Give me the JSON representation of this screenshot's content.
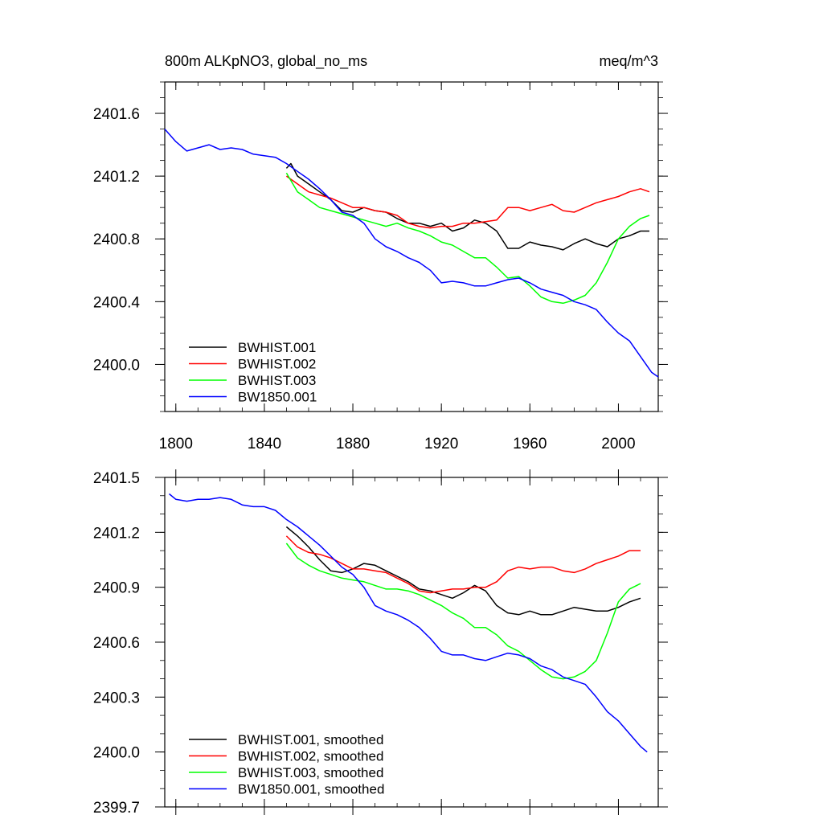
{
  "chart_data": [
    {
      "type": "line",
      "title_left": "800m ALKpNO3, global_no_ms",
      "title_right": "meq/m^3",
      "xlabel": "",
      "ylabel": "",
      "xlim": [
        1795,
        2018
      ],
      "ylim": [
        2399.7,
        2401.8
      ],
      "xticks": [
        1800,
        1840,
        1880,
        1920,
        1960,
        2000
      ],
      "yticks": [
        2400.0,
        2400.4,
        2400.8,
        2401.2,
        2401.6
      ],
      "ytick_labels": [
        "2400.0",
        "2400.4",
        "2400.8",
        "2401.2",
        "2401.6"
      ],
      "xtick_labels": [
        "1800",
        "1840",
        "1880",
        "1920",
        "1960",
        "2000"
      ],
      "legend_position": "bottom-left",
      "series": [
        {
          "name": "BWHIST.001",
          "color": "#000000",
          "x": [
            1850,
            1852,
            1855,
            1860,
            1865,
            1870,
            1875,
            1880,
            1885,
            1890,
            1895,
            1900,
            1905,
            1910,
            1915,
            1920,
            1925,
            1930,
            1935,
            1940,
            1945,
            1950,
            1955,
            1960,
            1965,
            1970,
            1975,
            1980,
            1985,
            1990,
            1995,
            2000,
            2005,
            2010,
            2014
          ],
          "y": [
            2401.25,
            2401.28,
            2401.2,
            2401.15,
            2401.1,
            2401.05,
            2400.98,
            2400.97,
            2401.0,
            2400.98,
            2400.97,
            2400.93,
            2400.9,
            2400.9,
            2400.88,
            2400.9,
            2400.85,
            2400.87,
            2400.92,
            2400.9,
            2400.85,
            2400.74,
            2400.74,
            2400.78,
            2400.76,
            2400.75,
            2400.73,
            2400.77,
            2400.8,
            2400.77,
            2400.75,
            2400.8,
            2400.82,
            2400.85,
            2400.85
          ]
        },
        {
          "name": "BWHIST.002",
          "color": "#ff0000",
          "x": [
            1850,
            1855,
            1860,
            1865,
            1870,
            1875,
            1880,
            1885,
            1890,
            1895,
            1900,
            1905,
            1910,
            1915,
            1920,
            1925,
            1930,
            1935,
            1940,
            1945,
            1950,
            1955,
            1960,
            1965,
            1970,
            1975,
            1980,
            1985,
            1990,
            1995,
            2000,
            2005,
            2010,
            2014
          ],
          "y": [
            2401.2,
            2401.15,
            2401.1,
            2401.08,
            2401.06,
            2401.03,
            2401.0,
            2401.0,
            2400.98,
            2400.97,
            2400.95,
            2400.9,
            2400.88,
            2400.87,
            2400.88,
            2400.88,
            2400.9,
            2400.9,
            2400.91,
            2400.92,
            2401.0,
            2401.0,
            2400.98,
            2401.0,
            2401.02,
            2400.98,
            2400.97,
            2401.0,
            2401.03,
            2401.05,
            2401.07,
            2401.1,
            2401.12,
            2401.1
          ]
        },
        {
          "name": "BWHIST.003",
          "color": "#00ff00",
          "x": [
            1850,
            1855,
            1860,
            1865,
            1870,
            1875,
            1880,
            1885,
            1890,
            1895,
            1900,
            1905,
            1910,
            1915,
            1920,
            1925,
            1930,
            1935,
            1940,
            1945,
            1950,
            1955,
            1960,
            1965,
            1970,
            1975,
            1980,
            1985,
            1990,
            1995,
            2000,
            2005,
            2010,
            2014
          ],
          "y": [
            2401.22,
            2401.1,
            2401.05,
            2401.0,
            2400.98,
            2400.96,
            2400.94,
            2400.92,
            2400.9,
            2400.88,
            2400.9,
            2400.87,
            2400.85,
            2400.82,
            2400.78,
            2400.76,
            2400.72,
            2400.68,
            2400.68,
            2400.62,
            2400.55,
            2400.56,
            2400.5,
            2400.43,
            2400.4,
            2400.39,
            2400.41,
            2400.44,
            2400.52,
            2400.65,
            2400.8,
            2400.88,
            2400.93,
            2400.95
          ]
        },
        {
          "name": "BW1850.001",
          "color": "#0000ff",
          "x": [
            1795,
            1800,
            1805,
            1810,
            1815,
            1820,
            1825,
            1830,
            1835,
            1840,
            1845,
            1850,
            1855,
            1860,
            1865,
            1870,
            1875,
            1880,
            1885,
            1890,
            1895,
            1900,
            1905,
            1910,
            1915,
            1920,
            1925,
            1930,
            1935,
            1940,
            1945,
            1950,
            1955,
            1960,
            1965,
            1970,
            1975,
            1980,
            1985,
            1990,
            1995,
            2000,
            2005,
            2010,
            2015,
            2018
          ],
          "y": [
            2401.5,
            2401.42,
            2401.36,
            2401.38,
            2401.4,
            2401.37,
            2401.38,
            2401.37,
            2401.34,
            2401.33,
            2401.32,
            2401.28,
            2401.23,
            2401.18,
            2401.12,
            2401.05,
            2400.97,
            2400.95,
            2400.9,
            2400.8,
            2400.75,
            2400.72,
            2400.68,
            2400.65,
            2400.6,
            2400.52,
            2400.53,
            2400.52,
            2400.5,
            2400.5,
            2400.52,
            2400.54,
            2400.55,
            2400.52,
            2400.48,
            2400.46,
            2400.44,
            2400.4,
            2400.38,
            2400.35,
            2400.27,
            2400.2,
            2400.15,
            2400.05,
            2399.95,
            2399.92
          ]
        }
      ]
    },
    {
      "type": "line",
      "xlabel": "",
      "ylabel": "",
      "xlim": [
        1795,
        2018
      ],
      "ylim": [
        2399.7,
        2401.5
      ],
      "xticks": [
        1800,
        1840,
        1880,
        1920,
        1960,
        2000
      ],
      "yticks": [
        2399.7,
        2400.0,
        2400.3,
        2400.6,
        2400.9,
        2401.2,
        2401.5
      ],
      "ytick_labels": [
        "2399.7",
        "2400.0",
        "2400.3",
        "2400.6",
        "2400.9",
        "2401.2",
        "2401.5"
      ],
      "legend_position": "bottom-left",
      "series": [
        {
          "name": "BWHIST.001, smoothed",
          "color": "#000000",
          "x": [
            1850,
            1855,
            1860,
            1865,
            1870,
            1875,
            1880,
            1885,
            1890,
            1895,
            1900,
            1905,
            1910,
            1915,
            1920,
            1925,
            1930,
            1935,
            1940,
            1945,
            1950,
            1955,
            1960,
            1965,
            1970,
            1975,
            1980,
            1985,
            1990,
            1995,
            2000,
            2005,
            2010
          ],
          "y": [
            2401.23,
            2401.18,
            2401.12,
            2401.05,
            2400.99,
            2400.98,
            2401.0,
            2401.03,
            2401.02,
            2400.99,
            2400.96,
            2400.93,
            2400.89,
            2400.88,
            2400.86,
            2400.84,
            2400.87,
            2400.91,
            2400.88,
            2400.8,
            2400.76,
            2400.75,
            2400.77,
            2400.75,
            2400.75,
            2400.77,
            2400.79,
            2400.78,
            2400.77,
            2400.77,
            2400.79,
            2400.82,
            2400.84
          ]
        },
        {
          "name": "BWHIST.002, smoothed",
          "color": "#ff0000",
          "x": [
            1850,
            1855,
            1860,
            1865,
            1870,
            1875,
            1880,
            1885,
            1890,
            1895,
            1900,
            1905,
            1910,
            1915,
            1920,
            1925,
            1930,
            1935,
            1940,
            1945,
            1950,
            1955,
            1960,
            1965,
            1970,
            1975,
            1980,
            1985,
            1990,
            1995,
            2000,
            2005,
            2010
          ],
          "y": [
            2401.18,
            2401.12,
            2401.09,
            2401.08,
            2401.06,
            2401.03,
            2401.0,
            2401.0,
            2400.99,
            2400.98,
            2400.95,
            2400.92,
            2400.88,
            2400.87,
            2400.88,
            2400.89,
            2400.89,
            2400.9,
            2400.9,
            2400.93,
            2400.99,
            2401.01,
            2401.0,
            2401.01,
            2401.01,
            2400.99,
            2400.98,
            2401.0,
            2401.03,
            2401.05,
            2401.07,
            2401.1,
            2401.1
          ]
        },
        {
          "name": "BWHIST.003, smoothed",
          "color": "#00ff00",
          "x": [
            1850,
            1855,
            1860,
            1865,
            1870,
            1875,
            1880,
            1885,
            1890,
            1895,
            1900,
            1905,
            1910,
            1915,
            1920,
            1925,
            1930,
            1935,
            1940,
            1945,
            1950,
            1955,
            1960,
            1965,
            1970,
            1975,
            1980,
            1985,
            1990,
            1995,
            2000,
            2005,
            2010
          ],
          "y": [
            2401.14,
            2401.06,
            2401.02,
            2400.99,
            2400.97,
            2400.95,
            2400.94,
            2400.93,
            2400.91,
            2400.89,
            2400.89,
            2400.88,
            2400.86,
            2400.83,
            2400.8,
            2400.76,
            2400.73,
            2400.68,
            2400.68,
            2400.64,
            2400.58,
            2400.55,
            2400.5,
            2400.45,
            2400.41,
            2400.4,
            2400.41,
            2400.44,
            2400.5,
            2400.65,
            2400.82,
            2400.89,
            2400.92
          ]
        },
        {
          "name": "BW1850.001, smoothed",
          "color": "#0000ff",
          "x": [
            1797,
            1800,
            1805,
            1810,
            1815,
            1820,
            1825,
            1830,
            1835,
            1840,
            1845,
            1850,
            1855,
            1860,
            1865,
            1870,
            1875,
            1880,
            1885,
            1890,
            1895,
            1900,
            1905,
            1910,
            1915,
            1920,
            1925,
            1930,
            1935,
            1940,
            1945,
            1950,
            1955,
            1960,
            1965,
            1970,
            1975,
            1980,
            1985,
            1990,
            1995,
            2000,
            2005,
            2010,
            2013
          ],
          "y": [
            2401.41,
            2401.38,
            2401.37,
            2401.38,
            2401.38,
            2401.39,
            2401.38,
            2401.35,
            2401.34,
            2401.34,
            2401.32,
            2401.27,
            2401.23,
            2401.18,
            2401.13,
            2401.07,
            2401.01,
            2400.97,
            2400.9,
            2400.8,
            2400.77,
            2400.75,
            2400.72,
            2400.68,
            2400.62,
            2400.55,
            2400.53,
            2400.53,
            2400.51,
            2400.5,
            2400.52,
            2400.54,
            2400.53,
            2400.51,
            2400.47,
            2400.45,
            2400.41,
            2400.39,
            2400.37,
            2400.3,
            2400.22,
            2400.17,
            2400.1,
            2400.03,
            2400.0
          ]
        }
      ]
    }
  ]
}
